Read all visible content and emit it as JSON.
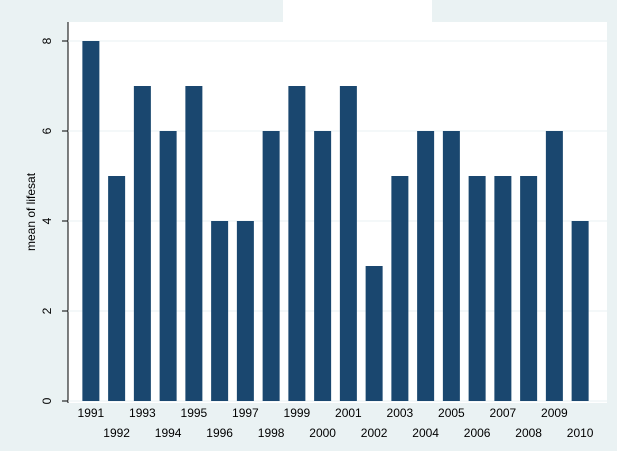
{
  "chart_data": {
    "type": "bar",
    "y_label": "mean of lifesat",
    "categories": [
      "1991",
      "1992",
      "1993",
      "1994",
      "1995",
      "1996",
      "1997",
      "1998",
      "1999",
      "2000",
      "2001",
      "2002",
      "2003",
      "2004",
      "2005",
      "2006",
      "2007",
      "2008",
      "2009",
      "2010"
    ],
    "values": [
      8,
      5,
      7,
      6,
      7,
      4,
      4,
      6,
      7,
      6,
      7,
      3,
      5,
      6,
      6,
      5,
      5,
      5,
      6,
      4
    ],
    "color": "#1a476f",
    "ylim": [
      0,
      8.4
    ],
    "yticks": [
      0,
      2,
      4,
      6,
      8
    ],
    "grid": true
  }
}
